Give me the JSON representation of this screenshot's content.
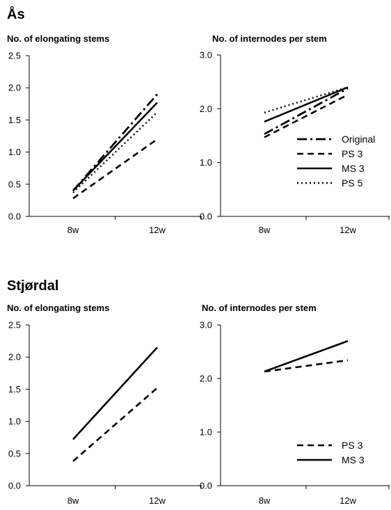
{
  "sections": [
    {
      "title": "Ås",
      "charts": [
        {
          "type": "line",
          "title": "No. of elongating stems",
          "categories": [
            "8w",
            "12w"
          ],
          "ylim": [
            0,
            2.5
          ],
          "yticks": [
            "0.0",
            "0.5",
            "1.0",
            "1.5",
            "2.0",
            "2.5"
          ],
          "series": [
            {
              "name": "Original",
              "values": [
                0.4,
                1.9
              ],
              "style": "dash-dot"
            },
            {
              "name": "PS 3",
              "values": [
                0.28,
                1.2
              ],
              "style": "dashed"
            },
            {
              "name": "MS 3",
              "values": [
                0.4,
                1.77
              ],
              "style": "solid"
            },
            {
              "name": "PS 5",
              "values": [
                0.37,
                1.62
              ],
              "style": "dotted"
            }
          ]
        },
        {
          "type": "line",
          "title": "No. of internodes per stem",
          "categories": [
            "8w",
            "12w"
          ],
          "ylim": [
            0,
            3.0
          ],
          "yticks": [
            "0.0",
            "1.0",
            "2.0",
            "3.0"
          ],
          "legend": "bottom-right",
          "series": [
            {
              "name": "Original",
              "values": [
                1.53,
                2.38
              ],
              "style": "dash-dot"
            },
            {
              "name": "PS 3",
              "values": [
                1.47,
                2.26
              ],
              "style": "dashed"
            },
            {
              "name": "MS 3",
              "values": [
                1.76,
                2.4
              ],
              "style": "solid"
            },
            {
              "name": "PS 5",
              "values": [
                1.93,
                2.4
              ],
              "style": "dotted"
            }
          ]
        }
      ]
    },
    {
      "title": "Stjørdal",
      "charts": [
        {
          "type": "line",
          "title": "No. of elongating stems",
          "categories": [
            "8w",
            "12w"
          ],
          "ylim": [
            0,
            2.5
          ],
          "yticks": [
            "0.0",
            "0.5",
            "1.0",
            "1.5",
            "2.0",
            "2.5"
          ],
          "series": [
            {
              "name": "PS 3",
              "values": [
                0.38,
                1.52
              ],
              "style": "dashed"
            },
            {
              "name": "MS 3",
              "values": [
                0.72,
                2.15
              ],
              "style": "solid"
            }
          ]
        },
        {
          "type": "line",
          "title": "No. of internodes per stem",
          "categories": [
            "8w",
            "12w"
          ],
          "ylim": [
            0,
            3.0
          ],
          "yticks": [
            "0.0",
            "1.0",
            "2.0",
            "3.0"
          ],
          "legend": "bottom-right",
          "series": [
            {
              "name": "PS 3",
              "values": [
                2.13,
                2.34
              ],
              "style": "dashed"
            },
            {
              "name": "MS 3",
              "values": [
                2.13,
                2.7
              ],
              "style": "solid"
            }
          ]
        }
      ]
    }
  ]
}
